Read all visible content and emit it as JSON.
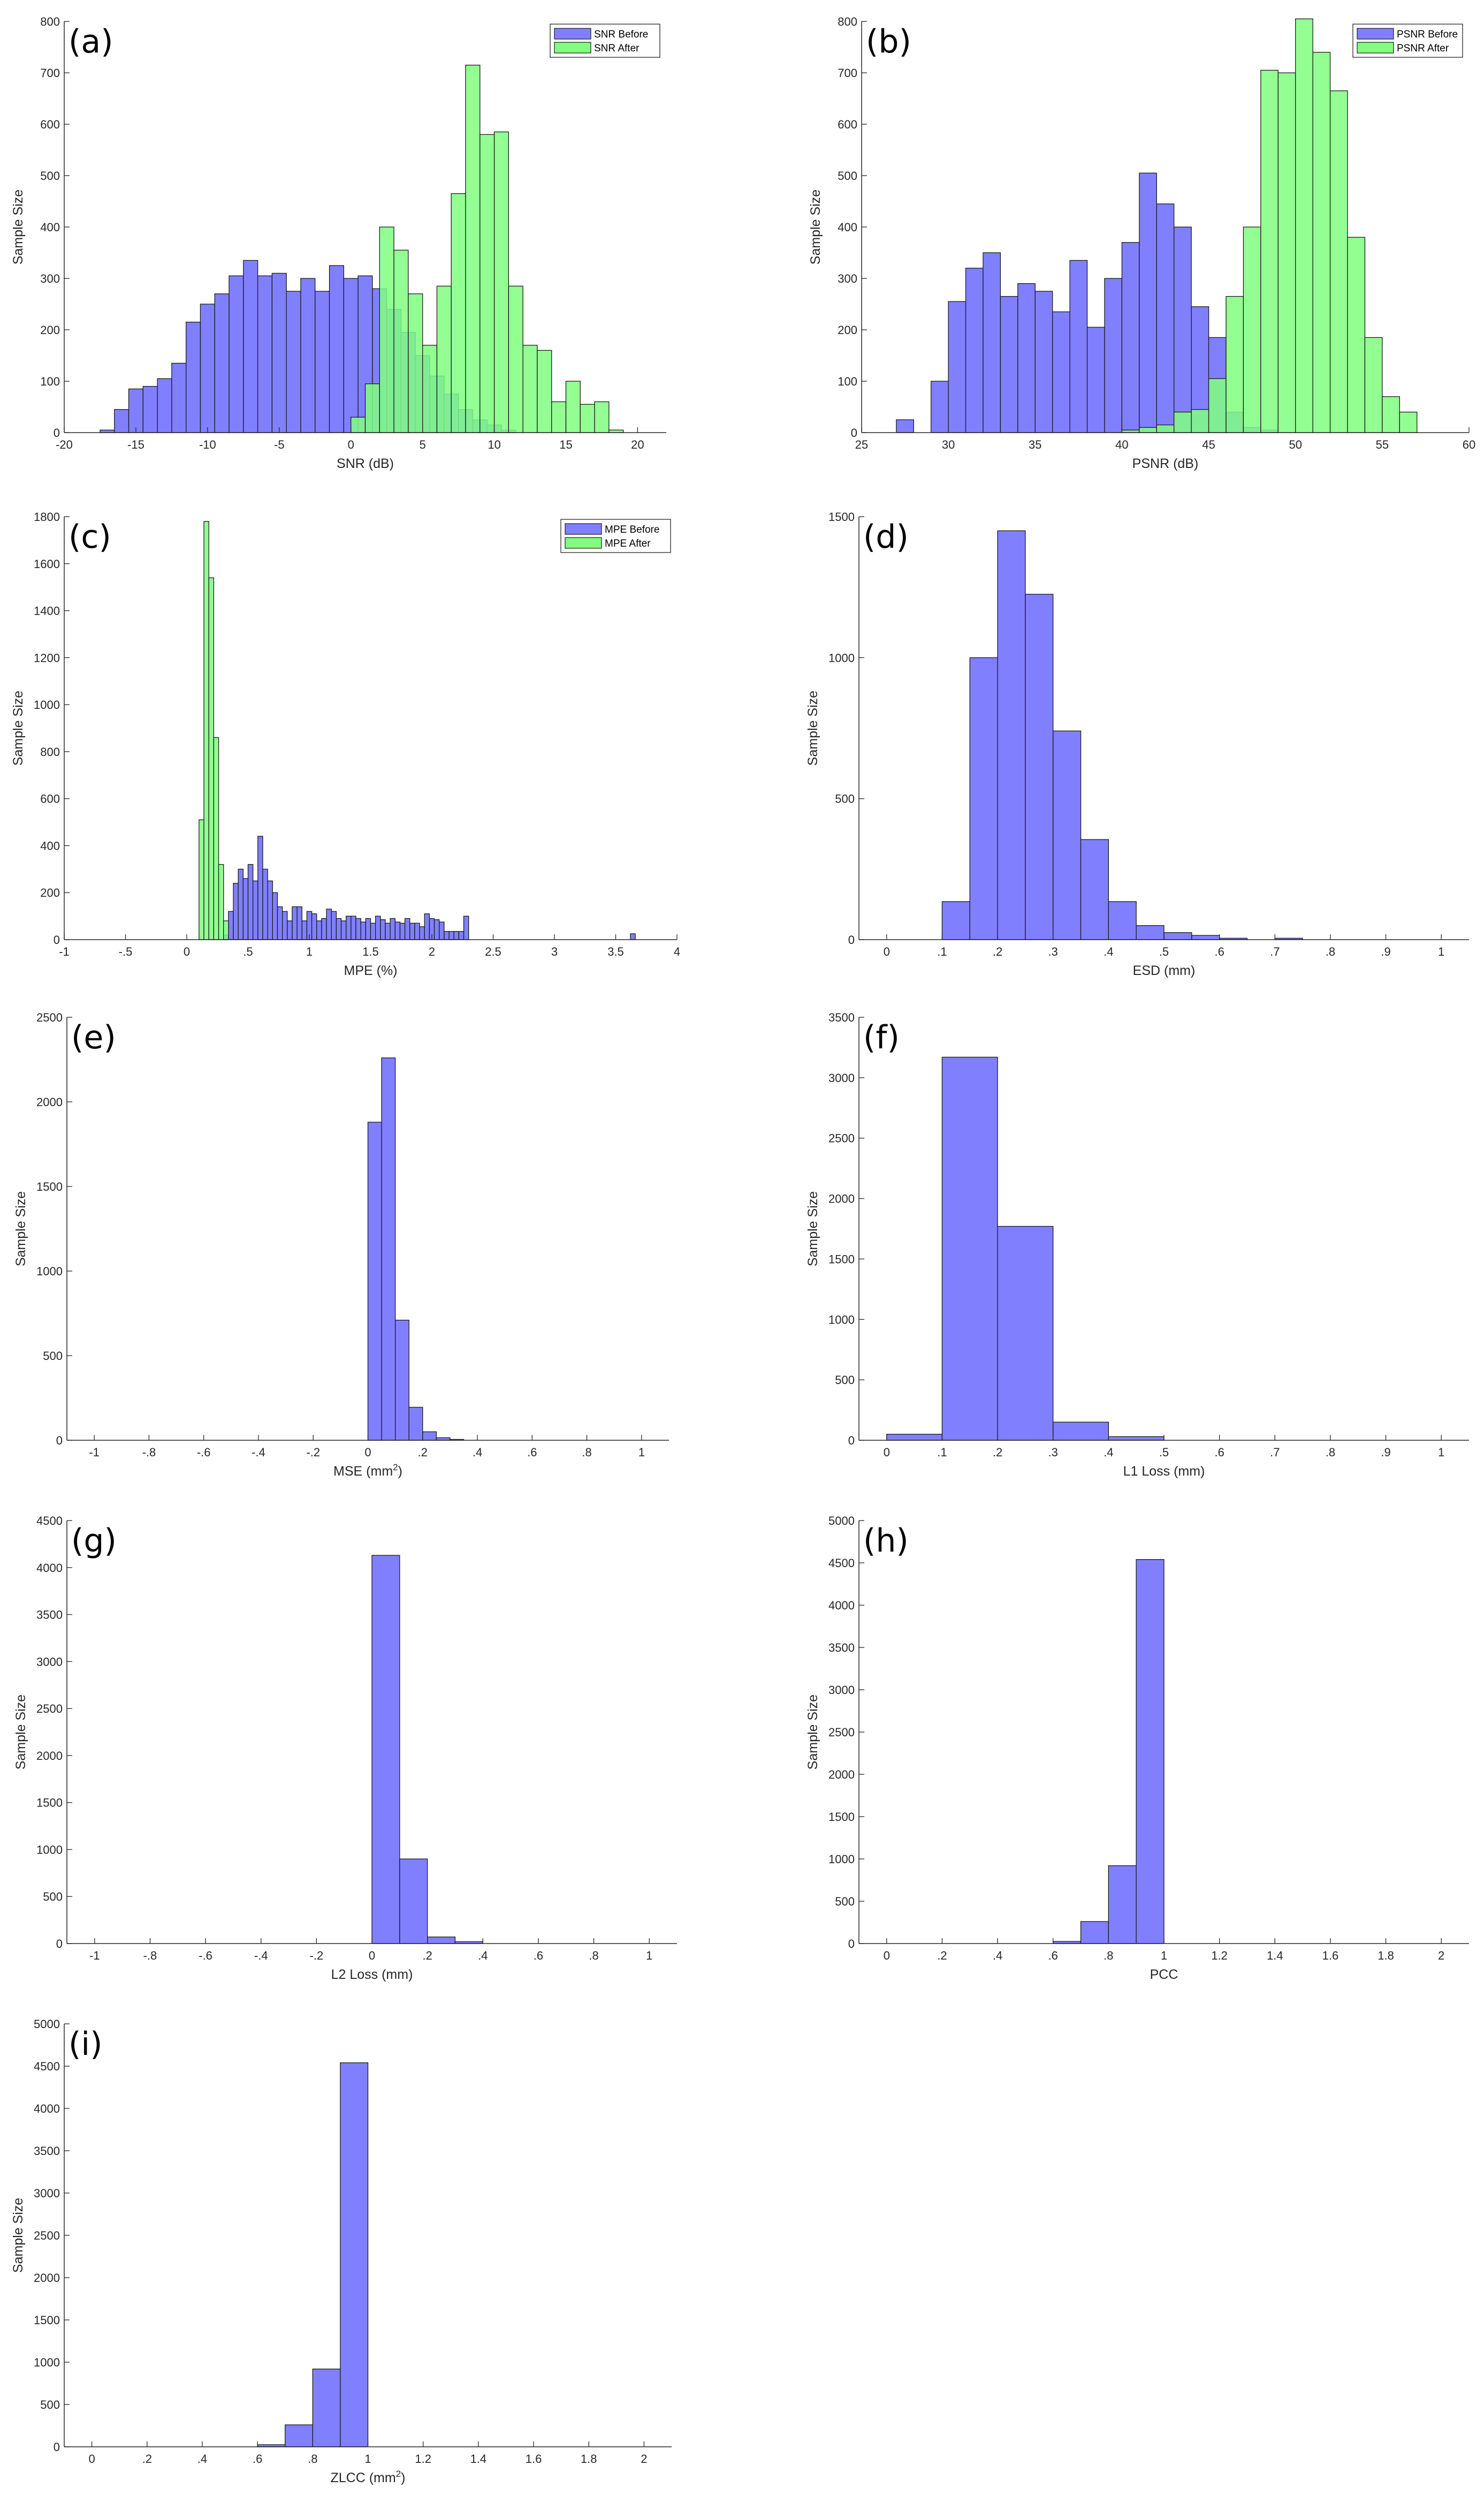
{
  "colors": {
    "before": "#8080ff",
    "after": "#80ff80",
    "overlap": "#40bf80",
    "edge": "#1a1a1a",
    "axis": "#262626"
  },
  "chart_data": [
    {
      "id": "a",
      "type": "bar",
      "panel_label": "(a)",
      "title": "",
      "xlabel": "SNR (dB)",
      "xlabel_sup": "",
      "ylabel": "Sample Size",
      "xlim": [
        -20,
        22
      ],
      "ylim": [
        0,
        800
      ],
      "legend_position": "top-right",
      "xticks": [
        -20,
        -15,
        -10,
        -5,
        0,
        5,
        10,
        15,
        20
      ],
      "yticks": [
        0,
        100,
        200,
        300,
        400,
        500,
        600,
        700,
        800
      ],
      "series": [
        {
          "name": "SNR Before",
          "color": "before",
          "bin_start": -17.5,
          "bin_width": 1,
          "values": [
            5,
            45,
            85,
            90,
            105,
            135,
            215,
            250,
            270,
            305,
            335,
            305,
            310,
            275,
            300,
            275,
            325,
            300,
            305,
            280,
            240,
            195,
            150,
            110,
            75,
            45,
            25,
            15,
            5
          ]
        },
        {
          "name": "SNR After",
          "color": "after",
          "bin_start": 0,
          "bin_width": 1,
          "values": [
            30,
            95,
            400,
            355,
            270,
            170,
            285,
            465,
            715,
            580,
            585,
            285,
            170,
            160,
            60,
            100,
            55,
            60,
            5
          ]
        }
      ]
    },
    {
      "id": "b",
      "type": "bar",
      "panel_label": "(b)",
      "title": "",
      "xlabel": "PSNR (dB)",
      "xlabel_sup": "",
      "ylabel": "Sample Size",
      "xlim": [
        25,
        60
      ],
      "ylim": [
        0,
        800
      ],
      "legend_position": "top-right",
      "xticks": [
        25,
        30,
        35,
        40,
        45,
        50,
        55,
        60
      ],
      "yticks": [
        0,
        100,
        200,
        300,
        400,
        500,
        600,
        700,
        800
      ],
      "series": [
        {
          "name": "PSNR Before",
          "color": "before",
          "bin_start": 27,
          "bin_width": 1,
          "values": [
            25,
            0,
            100,
            255,
            320,
            350,
            265,
            290,
            275,
            235,
            335,
            205,
            300,
            370,
            505,
            445,
            400,
            245,
            185,
            40,
            10,
            5
          ]
        },
        {
          "name": "PSNR After",
          "color": "after",
          "bin_start": 40,
          "bin_width": 1,
          "values": [
            5,
            10,
            15,
            40,
            45,
            105,
            265,
            400,
            705,
            700,
            805,
            740,
            665,
            380,
            185,
            70,
            40
          ]
        }
      ]
    },
    {
      "id": "c",
      "type": "bar",
      "panel_label": "(c)",
      "title": "",
      "xlabel": "MPE (%)",
      "xlabel_sup": "",
      "ylabel": "Sample Size",
      "xlim": [
        -1,
        4
      ],
      "ylim": [
        0,
        1800
      ],
      "legend_position": "top-right",
      "xticks": [
        -1,
        -0.5,
        0,
        0.5,
        1,
        1.5,
        2,
        2.5,
        3,
        3.5,
        4
      ],
      "yticks": [
        0,
        200,
        400,
        600,
        800,
        1000,
        1200,
        1400,
        1600,
        1800
      ],
      "series": [
        {
          "name": "MPE Before",
          "color": "before",
          "bin_start": 0.3,
          "bin_width": 0.04,
          "values": [
            20,
            120,
            240,
            300,
            260,
            320,
            250,
            440,
            300,
            250,
            200,
            140,
            120,
            80,
            140,
            140,
            80,
            120,
            110,
            80,
            90,
            130,
            120,
            90,
            80,
            100,
            100,
            90,
            75,
            90,
            70,
            100,
            85,
            70,
            90,
            75,
            70,
            90,
            70,
            70,
            55,
            110,
            90,
            85,
            75,
            35,
            35,
            35,
            35,
            100,
            0,
            0,
            0,
            0,
            0,
            0,
            0,
            0,
            0,
            0,
            0,
            0,
            0,
            0,
            0,
            0,
            0,
            0,
            0,
            0,
            0,
            0,
            0,
            0,
            0,
            0,
            0,
            0,
            0,
            0,
            0,
            0,
            0,
            25
          ]
        },
        {
          "name": "MPE After",
          "color": "after",
          "bin_start": 0.1,
          "bin_width": 0.04,
          "values": [
            510,
            1780,
            1540,
            860,
            320,
            80
          ]
        }
      ]
    },
    {
      "id": "d",
      "type": "bar",
      "panel_label": "(d)",
      "title": "",
      "xlabel": "ESD (mm)",
      "xlabel_sup": "",
      "ylabel": "Sample Size",
      "xlim": [
        -0.05,
        1.05
      ],
      "ylim": [
        0,
        1500
      ],
      "legend_position": "",
      "xticks": [
        0,
        0.1,
        0.2,
        0.3,
        0.4,
        0.5,
        0.6,
        0.7,
        0.8,
        0.9,
        1
      ],
      "yticks": [
        0,
        500,
        1000,
        1500
      ],
      "series": [
        {
          "name": "",
          "color": "before",
          "bin_start": 0.1,
          "bin_width": 0.05,
          "values": [
            135,
            1000,
            1450,
            1225,
            740,
            355,
            135,
            50,
            25,
            15,
            5,
            0,
            5
          ]
        }
      ]
    },
    {
      "id": "e",
      "type": "bar",
      "panel_label": "(e)",
      "title": "",
      "xlabel": "MSE (mm",
      "xlabel_sup": "2",
      "ylabel": "Sample Size",
      "xlim": [
        -1.1,
        1.1
      ],
      "ylim": [
        0,
        2500
      ],
      "legend_position": "",
      "xticks": [
        -1,
        -0.8,
        -0.6,
        -0.4,
        -0.2,
        0,
        0.2,
        0.4,
        0.6,
        0.8,
        1
      ],
      "yticks": [
        0,
        500,
        1000,
        1500,
        2000,
        2500
      ],
      "series": [
        {
          "name": "",
          "color": "before",
          "bin_start": 0,
          "bin_width": 0.05,
          "values": [
            1880,
            2260,
            710,
            195,
            50,
            15,
            5,
            0
          ]
        }
      ]
    },
    {
      "id": "f",
      "type": "bar",
      "panel_label": "(f)",
      "title": "",
      "xlabel": "L1 Loss (mm)",
      "xlabel_sup": "",
      "ylabel": "Sample Size",
      "xlim": [
        -0.05,
        1.05
      ],
      "ylim": [
        0,
        3500
      ],
      "legend_position": "",
      "xticks": [
        0,
        0.1,
        0.2,
        0.3,
        0.4,
        0.5,
        0.6,
        0.7,
        0.8,
        0.9,
        1
      ],
      "yticks": [
        0,
        500,
        1000,
        1500,
        2000,
        2500,
        3000,
        3500
      ],
      "series": [
        {
          "name": "",
          "color": "before",
          "bin_start": 0,
          "bin_width": 0.1,
          "values": [
            50,
            3170,
            1770,
            150,
            30
          ]
        }
      ]
    },
    {
      "id": "g",
      "type": "bar",
      "panel_label": "(g)",
      "title": "",
      "xlabel": "L2 Loss (mm)",
      "xlabel_sup": "",
      "ylabel": "Sample Size",
      "xlim": [
        -1.1,
        1.1
      ],
      "ylim": [
        0,
        4500
      ],
      "legend_position": "",
      "xticks": [
        -1,
        -0.8,
        -0.6,
        -0.4,
        -0.2,
        0,
        0.2,
        0.4,
        0.6,
        0.8,
        1
      ],
      "yticks": [
        0,
        500,
        1000,
        1500,
        2000,
        2500,
        3000,
        3500,
        4000,
        4500
      ],
      "series": [
        {
          "name": "",
          "color": "before",
          "bin_start": 0,
          "bin_width": 0.1,
          "values": [
            4130,
            900,
            70,
            20
          ]
        }
      ]
    },
    {
      "id": "h",
      "type": "bar",
      "panel_label": "(h)",
      "title": "",
      "xlabel": "PCC",
      "xlabel_sup": "",
      "ylabel": "Sample Size",
      "xlim": [
        -0.1,
        2.1
      ],
      "ylim": [
        0,
        5000
      ],
      "legend_position": "",
      "xticks": [
        0,
        0.2,
        0.4,
        0.6,
        0.8,
        1,
        1.2,
        1.4,
        1.6,
        1.8,
        2
      ],
      "yticks": [
        0,
        500,
        1000,
        1500,
        2000,
        2500,
        3000,
        3500,
        4000,
        4500,
        5000
      ],
      "series": [
        {
          "name": "",
          "color": "before",
          "bin_start": 0.6,
          "bin_width": 0.1,
          "values": [
            25,
            260,
            920,
            4540
          ]
        }
      ]
    },
    {
      "id": "i",
      "type": "bar",
      "panel_label": "(i)",
      "title": "",
      "xlabel": "ZLCC (mm",
      "xlabel_sup": "2",
      "ylabel": "Sample Size",
      "xlim": [
        -0.1,
        2.1
      ],
      "ylim": [
        0,
        5000
      ],
      "legend_position": "",
      "xticks": [
        0,
        0.2,
        0.4,
        0.6,
        0.8,
        1,
        1.2,
        1.4,
        1.6,
        1.8,
        2
      ],
      "yticks": [
        0,
        500,
        1000,
        1500,
        2000,
        2500,
        3000,
        3500,
        4000,
        4500,
        5000
      ],
      "series": [
        {
          "name": "",
          "color": "before",
          "bin_start": 0.6,
          "bin_width": 0.1,
          "values": [
            25,
            260,
            920,
            4540
          ]
        }
      ]
    }
  ]
}
